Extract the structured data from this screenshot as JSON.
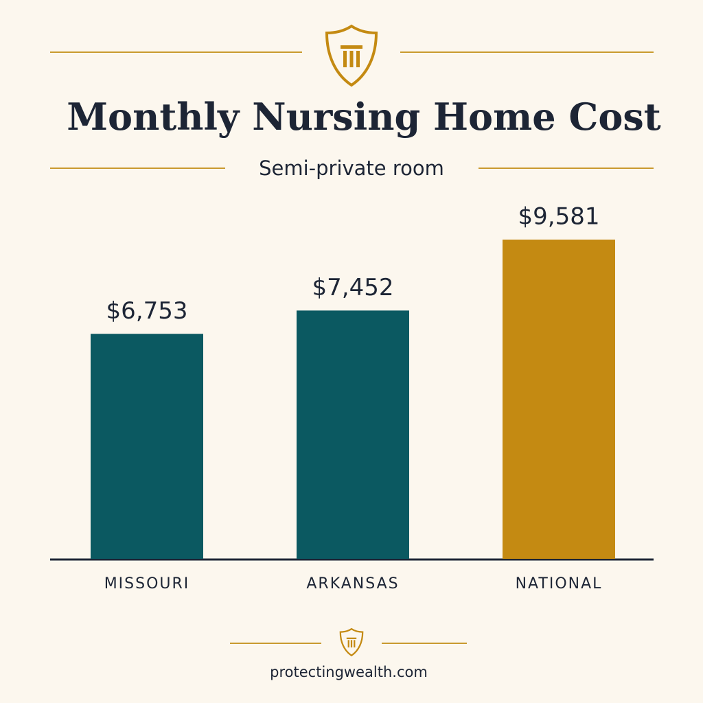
{
  "chart_data": {
    "type": "bar",
    "title": "Monthly Nursing Home Cost",
    "subtitle": "Semi-private room",
    "categories": [
      "MISSOURI",
      "ARKANSAS",
      "NATIONAL"
    ],
    "values": [
      6753,
      7452,
      9581
    ],
    "value_labels": [
      "$6,753",
      "$7,452",
      "$9,581"
    ],
    "colors": [
      "#0b5961",
      "#0b5961",
      "#c48a12"
    ],
    "footer": "protectingwealth.com"
  }
}
